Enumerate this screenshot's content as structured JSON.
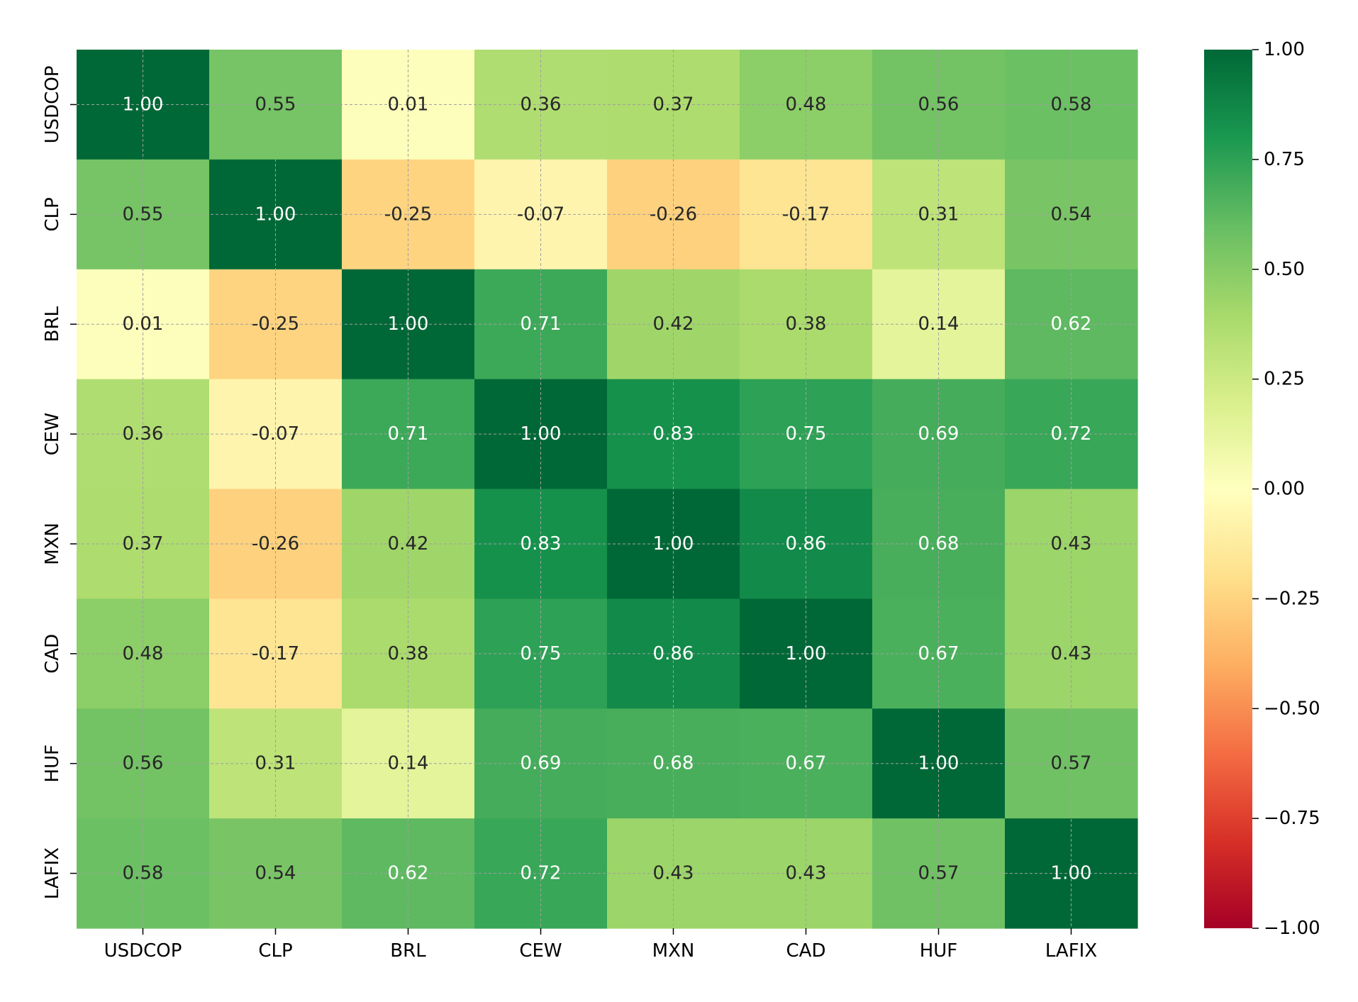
{
  "chart_data": {
    "type": "heatmap",
    "title": "",
    "xlabel": "",
    "ylabel": "",
    "x_labels": [
      "USDCOP",
      "CLP",
      "BRL",
      "CEW",
      "MXN",
      "CAD",
      "HUF",
      "LAFIX"
    ],
    "y_labels": [
      "USDCOP",
      "CLP",
      "BRL",
      "CEW",
      "MXN",
      "CAD",
      "HUF",
      "LAFIX"
    ],
    "values": [
      [
        1.0,
        0.55,
        0.01,
        0.36,
        0.37,
        0.48,
        0.56,
        0.58
      ],
      [
        0.55,
        1.0,
        -0.25,
        -0.07,
        -0.26,
        -0.17,
        0.31,
        0.54
      ],
      [
        0.01,
        -0.25,
        1.0,
        0.71,
        0.42,
        0.38,
        0.14,
        0.62
      ],
      [
        0.36,
        -0.07,
        0.71,
        1.0,
        0.83,
        0.75,
        0.69,
        0.72
      ],
      [
        0.37,
        -0.26,
        0.42,
        0.83,
        1.0,
        0.86,
        0.68,
        0.43
      ],
      [
        0.48,
        -0.17,
        0.38,
        0.75,
        0.86,
        1.0,
        0.67,
        0.43
      ],
      [
        0.56,
        0.31,
        0.14,
        0.69,
        0.68,
        0.67,
        1.0,
        0.57
      ],
      [
        0.58,
        0.54,
        0.62,
        0.72,
        0.43,
        0.43,
        0.57,
        1.0
      ]
    ],
    "value_format": "0.00",
    "colormap": "RdYlGn",
    "color_range": [
      -1.0,
      1.0
    ],
    "colorbar": {
      "ticks": [
        1.0,
        0.75,
        0.5,
        0.25,
        0.0,
        -0.25,
        -0.5,
        -0.75,
        -1.0
      ],
      "tick_labels": [
        "1.00",
        "0.75",
        "0.50",
        "0.25",
        "0.00",
        "−0.25",
        "−0.50",
        "−0.75",
        "−1.00"
      ],
      "placement": "right"
    },
    "grid": true,
    "grid_style": "dashed",
    "colors": {
      "grid": "#a0a0a0",
      "text_dark": "#262626",
      "text_light": "#ffffff",
      "axis": "#000000"
    }
  }
}
